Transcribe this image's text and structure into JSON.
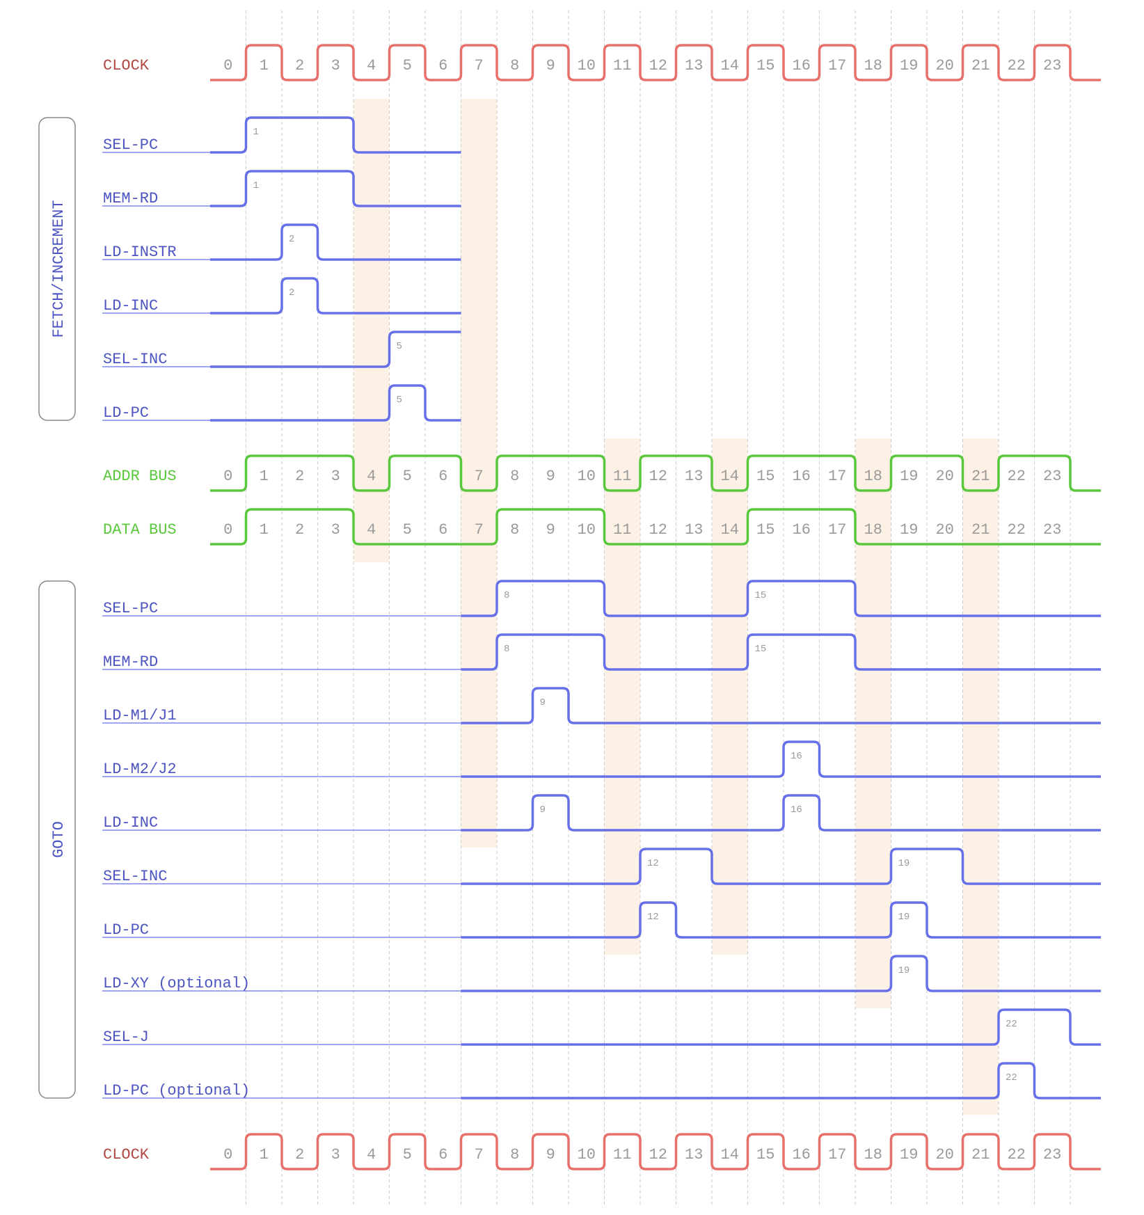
{
  "colors": {
    "clock": "#e8706a",
    "clock_label": "#b04a44",
    "signal": "#6670e8",
    "signal_label": "#4d55c0",
    "bus": "#5ac83c",
    "bus_label": "#5ac83c",
    "highlight": "#fdf1e6",
    "grid": "#c8c8c8",
    "tick_text": "#9a9a9a",
    "group_border": "#888888"
  },
  "steps": [
    "0",
    "1",
    "2",
    "3",
    "4",
    "5",
    "6",
    "7",
    "8",
    "9",
    "10",
    "11",
    "12",
    "13",
    "14",
    "15",
    "16",
    "17",
    "18",
    "19",
    "20",
    "21",
    "22",
    "23"
  ],
  "clock_top": {
    "label": "CLOCK",
    "high_steps": [
      1,
      3,
      5,
      7,
      9,
      11,
      13,
      15,
      17,
      19,
      21,
      23
    ]
  },
  "clock_bottom": {
    "label": "CLOCK",
    "high_steps": [
      1,
      3,
      5,
      7,
      9,
      11,
      13,
      15,
      17,
      19,
      21,
      23
    ]
  },
  "groups": [
    {
      "label": "FETCH/INCREMENT",
      "signals": [
        {
          "label": "SEL-PC",
          "start_step": 0,
          "end_step": 7,
          "pulses": [
            {
              "from": 1,
              "to": 4,
              "tag": "1"
            }
          ]
        },
        {
          "label": "MEM-RD",
          "start_step": 0,
          "end_step": 7,
          "pulses": [
            {
              "from": 1,
              "to": 4,
              "tag": "1"
            }
          ]
        },
        {
          "label": "LD-INSTR",
          "start_step": 0,
          "end_step": 7,
          "pulses": [
            {
              "from": 2,
              "to": 3,
              "tag": "2"
            }
          ]
        },
        {
          "label": "LD-INC",
          "start_step": 0,
          "end_step": 7,
          "pulses": [
            {
              "from": 2,
              "to": 3,
              "tag": "2"
            }
          ]
        },
        {
          "label": "SEL-INC",
          "start_step": 0,
          "end_step": 7,
          "pulses": [
            {
              "from": 5,
              "to": 7,
              "tag": "5"
            }
          ]
        },
        {
          "label": "LD-PC",
          "start_step": 0,
          "end_step": 7,
          "pulses": [
            {
              "from": 5,
              "to": 6,
              "tag": "5"
            }
          ]
        }
      ]
    },
    {
      "label": "GOTO",
      "signals": [
        {
          "label": "SEL-PC",
          "start_step": 7,
          "end_step": 24,
          "pulses": [
            {
              "from": 8,
              "to": 11,
              "tag": "8"
            },
            {
              "from": 15,
              "to": 18,
              "tag": "15"
            }
          ]
        },
        {
          "label": "MEM-RD",
          "start_step": 7,
          "end_step": 24,
          "pulses": [
            {
              "from": 8,
              "to": 11,
              "tag": "8"
            },
            {
              "from": 15,
              "to": 18,
              "tag": "15"
            }
          ]
        },
        {
          "label": "LD-M1/J1",
          "start_step": 7,
          "end_step": 24,
          "pulses": [
            {
              "from": 9,
              "to": 10,
              "tag": "9"
            }
          ]
        },
        {
          "label": "LD-M2/J2",
          "start_step": 7,
          "end_step": 24,
          "pulses": [
            {
              "from": 16,
              "to": 17,
              "tag": "16"
            }
          ]
        },
        {
          "label": "LD-INC",
          "start_step": 7,
          "end_step": 24,
          "pulses": [
            {
              "from": 9,
              "to": 10,
              "tag": "9"
            },
            {
              "from": 16,
              "to": 17,
              "tag": "16"
            }
          ]
        },
        {
          "label": "SEL-INC",
          "start_step": 7,
          "end_step": 24,
          "pulses": [
            {
              "from": 12,
              "to": 14,
              "tag": "12"
            },
            {
              "from": 19,
              "to": 21,
              "tag": "19"
            }
          ]
        },
        {
          "label": "LD-PC",
          "start_step": 7,
          "end_step": 24,
          "pulses": [
            {
              "from": 12,
              "to": 13,
              "tag": "12"
            },
            {
              "from": 19,
              "to": 20,
              "tag": "19"
            }
          ]
        },
        {
          "label": "LD-XY (optional)",
          "start_step": 7,
          "end_step": 24,
          "pulses": [
            {
              "from": 19,
              "to": 20,
              "tag": "19"
            }
          ]
        },
        {
          "label": "SEL-J",
          "start_step": 7,
          "end_step": 24,
          "pulses": [
            {
              "from": 22,
              "to": 24,
              "tag": "22"
            }
          ]
        },
        {
          "label": "LD-PC (optional)",
          "start_step": 7,
          "end_step": 24,
          "pulses": [
            {
              "from": 22,
              "to": 23,
              "tag": "22"
            }
          ]
        }
      ]
    }
  ],
  "buses": [
    {
      "label": "ADDR BUS",
      "high_segments": [
        [
          1,
          4
        ],
        [
          5,
          7
        ],
        [
          8,
          11
        ],
        [
          12,
          14
        ],
        [
          15,
          18
        ],
        [
          19,
          21
        ],
        [
          22,
          24
        ]
      ]
    },
    {
      "label": "DATA BUS",
      "high_segments": [
        [
          1,
          4
        ],
        [
          8,
          11
        ],
        [
          15,
          18
        ]
      ]
    }
  ],
  "highlights": [
    {
      "step": 4,
      "span": "fetch-bus"
    },
    {
      "step": 7,
      "span": "fetch-to-goto"
    },
    {
      "step": 11,
      "span": "goto-mid"
    },
    {
      "step": 14,
      "span": "goto-mid"
    },
    {
      "step": 18,
      "span": "goto-late"
    },
    {
      "step": 21,
      "span": "goto-end"
    }
  ]
}
